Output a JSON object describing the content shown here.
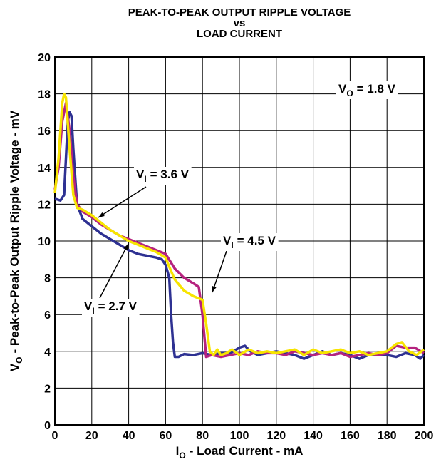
{
  "chart_data": {
    "type": "line",
    "title": [
      "PEAK-TO-PEAK OUTPUT RIPPLE VOLTAGE",
      "vs",
      "LOAD CURRENT"
    ],
    "x_label": {
      "symbol": "I",
      "subscript": "O",
      "text": "- Load Current - mA"
    },
    "y_label": {
      "symbol": "V",
      "subscript": "O",
      "text": "- Peak-to-Peak Output Ripple Voltage - mV"
    },
    "annotations": [
      {
        "symbol": "V",
        "subscript": "O",
        "text": "= 1.8 V"
      }
    ],
    "xlim": [
      0,
      200
    ],
    "xticks": [
      0,
      20,
      40,
      60,
      80,
      100,
      120,
      140,
      160,
      180,
      200
    ],
    "ylim": [
      0,
      20
    ],
    "yticks": [
      0,
      2,
      4,
      6,
      8,
      10,
      12,
      14,
      16,
      18,
      20
    ],
    "grid": true,
    "series": [
      {
        "label": {
          "symbol": "V",
          "subscript": "I",
          "text": "= 2.7 V"
        },
        "color": "#2e3192",
        "x": [
          0,
          3,
          5,
          7,
          8,
          9,
          10,
          12,
          15,
          20,
          25,
          30,
          35,
          40,
          45,
          50,
          55,
          58,
          60,
          62,
          63,
          64,
          65,
          67,
          70,
          75,
          80,
          85,
          90,
          95,
          100,
          103,
          106,
          110,
          115,
          120,
          125,
          130,
          135,
          140,
          145,
          150,
          155,
          160,
          165,
          170,
          175,
          180,
          185,
          190,
          195,
          198,
          200
        ],
        "values": [
          12.3,
          12.2,
          12.5,
          16.5,
          17.0,
          16.8,
          15,
          12,
          11.2,
          10.8,
          10.4,
          10.1,
          9.8,
          9.5,
          9.3,
          9.2,
          9.1,
          9.0,
          8.7,
          8.0,
          6,
          4.5,
          3.7,
          3.7,
          3.85,
          3.8,
          3.9,
          3.8,
          3.9,
          3.9,
          4.2,
          4.3,
          4.0,
          3.8,
          3.9,
          4.0,
          3.9,
          3.8,
          3.6,
          3.8,
          4.0,
          3.8,
          3.9,
          3.8,
          3.6,
          3.8,
          3.8,
          3.8,
          3.7,
          3.9,
          3.8,
          3.6,
          3.8
        ]
      },
      {
        "label": {
          "symbol": "V",
          "subscript": "I",
          "text": "= 3.6 V"
        },
        "color": "#b5237f",
        "x": [
          0,
          2,
          4,
          6,
          8,
          10,
          12,
          15,
          20,
          25,
          30,
          35,
          40,
          45,
          50,
          55,
          60,
          65,
          70,
          75,
          78,
          80,
          82,
          85,
          90,
          95,
          100,
          105,
          110,
          115,
          120,
          125,
          130,
          135,
          140,
          145,
          150,
          155,
          160,
          165,
          170,
          175,
          180,
          185,
          190,
          195,
          200
        ],
        "values": [
          12.8,
          14,
          16.5,
          17.5,
          16,
          13.5,
          12,
          11.6,
          11.3,
          10.9,
          10.6,
          10.3,
          10.1,
          9.9,
          9.7,
          9.5,
          9.3,
          8.5,
          8.0,
          7.7,
          7.5,
          6,
          3.7,
          3.8,
          3.7,
          3.8,
          3.9,
          3.8,
          4.0,
          3.9,
          3.9,
          3.8,
          4.0,
          3.9,
          3.8,
          3.9,
          3.8,
          3.9,
          3.7,
          3.8,
          3.9,
          3.8,
          3.9,
          4.3,
          4.2,
          4.2,
          3.9
        ]
      },
      {
        "label": {
          "symbol": "V",
          "subscript": "I",
          "text": "= 4.5 V"
        },
        "color": "#f7e400",
        "x": [
          0,
          2,
          4,
          5,
          6,
          8,
          10,
          12,
          15,
          20,
          25,
          30,
          35,
          40,
          45,
          50,
          55,
          60,
          62,
          65,
          70,
          75,
          80,
          82,
          84,
          86,
          88,
          90,
          93,
          96,
          100,
          105,
          110,
          115,
          120,
          125,
          130,
          135,
          140,
          145,
          150,
          155,
          160,
          165,
          170,
          175,
          180,
          185,
          188,
          192,
          196,
          200
        ],
        "values": [
          12.6,
          14.5,
          17.5,
          18.0,
          17.8,
          15,
          12.5,
          11.8,
          11.7,
          11.4,
          11.0,
          10.6,
          10.3,
          10.0,
          9.8,
          9.6,
          9.4,
          9.1,
          8.6,
          7.9,
          7.3,
          7.0,
          6.8,
          5.5,
          4.0,
          3.8,
          4.1,
          3.8,
          3.9,
          4.1,
          3.8,
          4.1,
          3.9,
          4.0,
          3.9,
          4.0,
          4.1,
          3.8,
          4.1,
          3.9,
          4.0,
          4.1,
          3.9,
          4.0,
          3.8,
          3.9,
          4.0,
          4.4,
          4.5,
          4.0,
          3.8,
          4.1
        ]
      }
    ]
  }
}
